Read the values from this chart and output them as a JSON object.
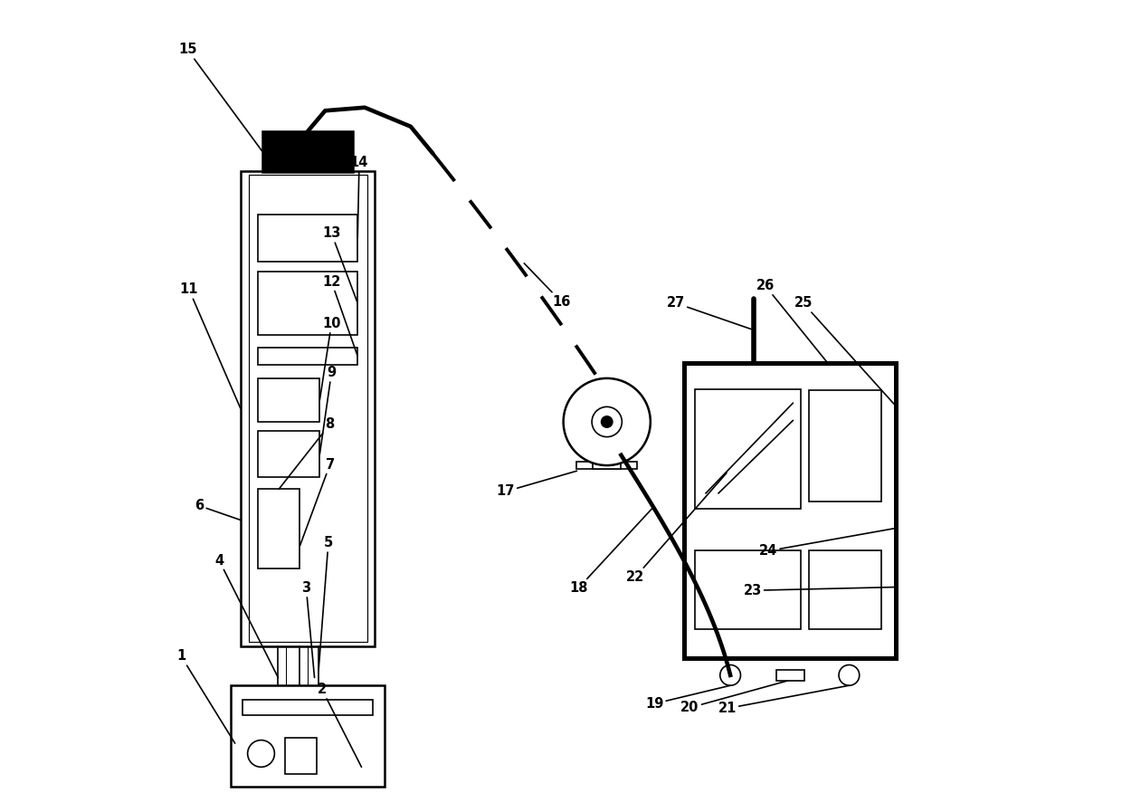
{
  "figsize": [
    12.4,
    8.76
  ],
  "dpi": 100,
  "bg_color": "#ffffff",
  "line_color": "#000000",
  "label_fontsize": 10.5,
  "lw_thick": 2.8,
  "lw_med": 1.8,
  "lw_thin": 1.2
}
